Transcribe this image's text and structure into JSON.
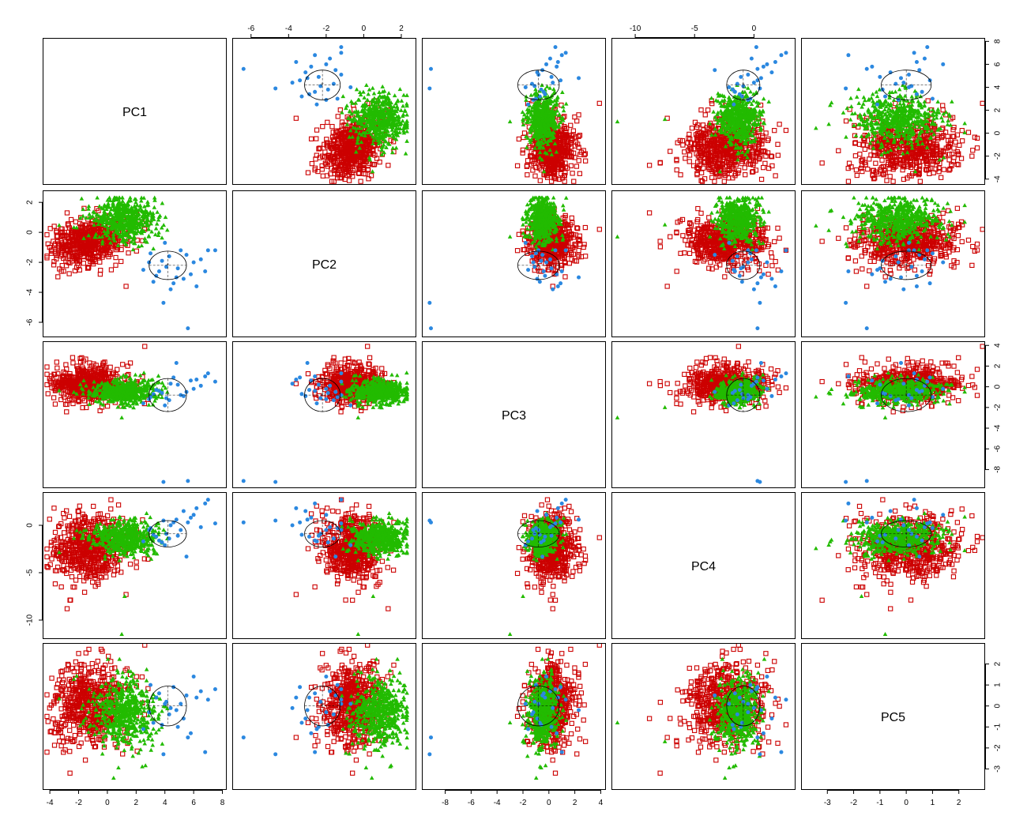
{
  "chart_data": {
    "type": "scatter-matrix",
    "title": "",
    "variables": [
      "PC1",
      "PC2",
      "PC3",
      "PC4",
      "PC5"
    ],
    "ranges": {
      "PC1": [
        -4.5,
        8.3
      ],
      "PC2": [
        -7.0,
        2.8
      ],
      "PC3": [
        -9.8,
        4.4
      ],
      "PC4": [
        -12.0,
        3.5
      ],
      "PC5": [
        -4.0,
        3.0
      ]
    },
    "ticks": {
      "PC1": [
        -4,
        -2,
        0,
        2,
        4,
        6,
        8
      ],
      "PC2": [
        -6,
        -4,
        -2,
        0,
        2
      ],
      "PC3": [
        -8,
        -6,
        -4,
        -2,
        0,
        2,
        4
      ],
      "PC4": [
        -10,
        -5,
        0
      ],
      "PC5": [
        -3,
        -2,
        -1,
        0,
        1,
        2
      ]
    },
    "tick_labels": {
      "PC1": [
        "-4",
        "-2",
        "0",
        "2",
        "4",
        "6",
        "8"
      ],
      "PC2": [
        "-6",
        "-4",
        "-2",
        "0",
        "2"
      ],
      "PC3": [
        "-8",
        "-6",
        "-4",
        "-2",
        "0",
        "2",
        "4"
      ],
      "PC4": [
        "-10",
        "-5",
        "0"
      ],
      "PC5": [
        "-3",
        "-2",
        "-1",
        "0",
        "1",
        "2"
      ]
    },
    "groups": [
      {
        "id": "red",
        "color": "#CC0000",
        "marker": "open-square",
        "count": 560,
        "mean": [
          -1.2,
          -0.6,
          0.3,
          -2.3,
          0.0
        ],
        "sd": [
          1.25,
          0.75,
          0.9,
          1.7,
          1.0
        ],
        "outliers": [
          [
            -4.2,
            -1.7,
            0.2,
            -2.5,
            -2.2
          ],
          [
            -3.9,
            -1.4,
            0.4,
            -1.8,
            -1.2
          ],
          [
            -2.8,
            1.3,
            0.3,
            -8.8,
            -0.6
          ],
          [
            -2.6,
            -0.6,
            0.5,
            -7.9,
            -3.2
          ],
          [
            -2.0,
            -2.2,
            1.0,
            1.0,
            2.5
          ],
          [
            -2.2,
            0.7,
            0.7,
            -0.9,
            2.1
          ],
          [
            1.3,
            -3.6,
            0.3,
            -7.3,
            -1.5
          ],
          [
            1.6,
            -0.5,
            2.3,
            -4.1,
            1.5
          ],
          [
            2.6,
            0.2,
            3.9,
            -1.3,
            2.9
          ],
          [
            -3.2,
            -2.6,
            -0.6,
            -6.5,
            -1.9
          ]
        ]
      },
      {
        "id": "green",
        "color": "#22BB00",
        "marker": "filled-triangle",
        "count": 520,
        "mean": [
          1.2,
          0.9,
          -0.5,
          -1.3,
          -0.3
        ],
        "sd": [
          1.1,
          0.75,
          0.6,
          0.9,
          0.8
        ],
        "outliers": [
          [
            1.0,
            -0.3,
            -3.0,
            -11.5,
            -0.8
          ],
          [
            1.2,
            0.5,
            -2.0,
            -7.5,
            -1.7
          ],
          [
            3.2,
            -1.1,
            -0.9,
            -2.5,
            -1.1
          ],
          [
            2.6,
            -0.6,
            0.6,
            0.4,
            -1.8
          ]
        ]
      },
      {
        "id": "blue",
        "color": "#2B88E0",
        "marker": "filled-circle",
        "count": 26,
        "mean": [
          4.2,
          -2.2,
          -0.8,
          -0.9,
          0.0
        ],
        "sd": [
          1.4,
          1.0,
          0.5,
          1.0,
          0.9
        ],
        "points": [
          [
            5.6,
            -6.4,
            -9.1,
            0.3,
            -1.5
          ],
          [
            3.9,
            -4.7,
            -9.2,
            0.5,
            -2.3
          ],
          [
            7.0,
            -1.2,
            1.3,
            2.7,
            0.3
          ],
          [
            7.5,
            -1.2,
            0.5,
            0.2,
            0.8
          ],
          [
            6.8,
            -2.6,
            1.0,
            2.3,
            -2.2
          ],
          [
            6.0,
            -2.0,
            -0.2,
            1.1,
            1.4
          ],
          [
            5.5,
            -1.5,
            -0.5,
            -3.3,
            0.5
          ],
          [
            4.8,
            -3.0,
            2.3,
            0.6,
            -0.2
          ],
          [
            4.1,
            -2.3,
            -1.1,
            -0.9,
            0.2
          ],
          [
            3.8,
            -1.9,
            -0.6,
            -1.8,
            -0.9
          ],
          [
            3.4,
            -2.9,
            -0.3,
            -1.2,
            0.4
          ],
          [
            2.9,
            -2.0,
            -1.2,
            -0.5,
            -0.3
          ],
          [
            4.6,
            -3.4,
            0.9,
            0.3,
            0.9
          ],
          [
            5.3,
            -3.1,
            -0.9,
            1.5,
            -0.6
          ],
          [
            4.3,
            -1.6,
            -1.3,
            -1.4,
            -0.4
          ],
          [
            3.6,
            -2.6,
            -0.4,
            -1.6,
            0.6
          ],
          [
            5.1,
            -1.2,
            -0.8,
            -0.5,
            0.1
          ],
          [
            4.9,
            -2.4,
            0.2,
            -1.1,
            -1.0
          ],
          [
            3.2,
            -3.3,
            -0.7,
            -1.0,
            -0.8
          ],
          [
            6.5,
            -1.8,
            0.1,
            -0.2,
            0.7
          ],
          [
            2.5,
            -2.5,
            -1.6,
            -1.7,
            -1.1
          ],
          [
            4.0,
            -0.7,
            -1.8,
            -2.1,
            0.1
          ],
          [
            5.8,
            -2.8,
            0.6,
            0.8,
            -1.3
          ],
          [
            3.0,
            -1.4,
            -1.0,
            -0.3,
            1.0
          ],
          [
            4.4,
            -3.8,
            0.3,
            0.0,
            -0.1
          ],
          [
            6.2,
            -3.6,
            0.7,
            1.8,
            0.4
          ]
        ]
      }
    ],
    "ellipse": {
      "group": "blue",
      "center": [
        4.2,
        -2.2,
        -0.8,
        -0.9,
        0.0
      ],
      "semi_axes": [
        1.3,
        0.95,
        1.6,
        1.4,
        0.95
      ],
      "stroke": "#000000"
    },
    "axis_placement": {
      "top": [
        "PC2",
        "PC4"
      ],
      "right": [
        "PC1",
        "PC3",
        "PC5"
      ],
      "bottom": [
        "PC1",
        "PC3",
        "PC5"
      ],
      "left": [
        "PC2",
        "PC4"
      ]
    },
    "grid": false,
    "legend": "none"
  }
}
